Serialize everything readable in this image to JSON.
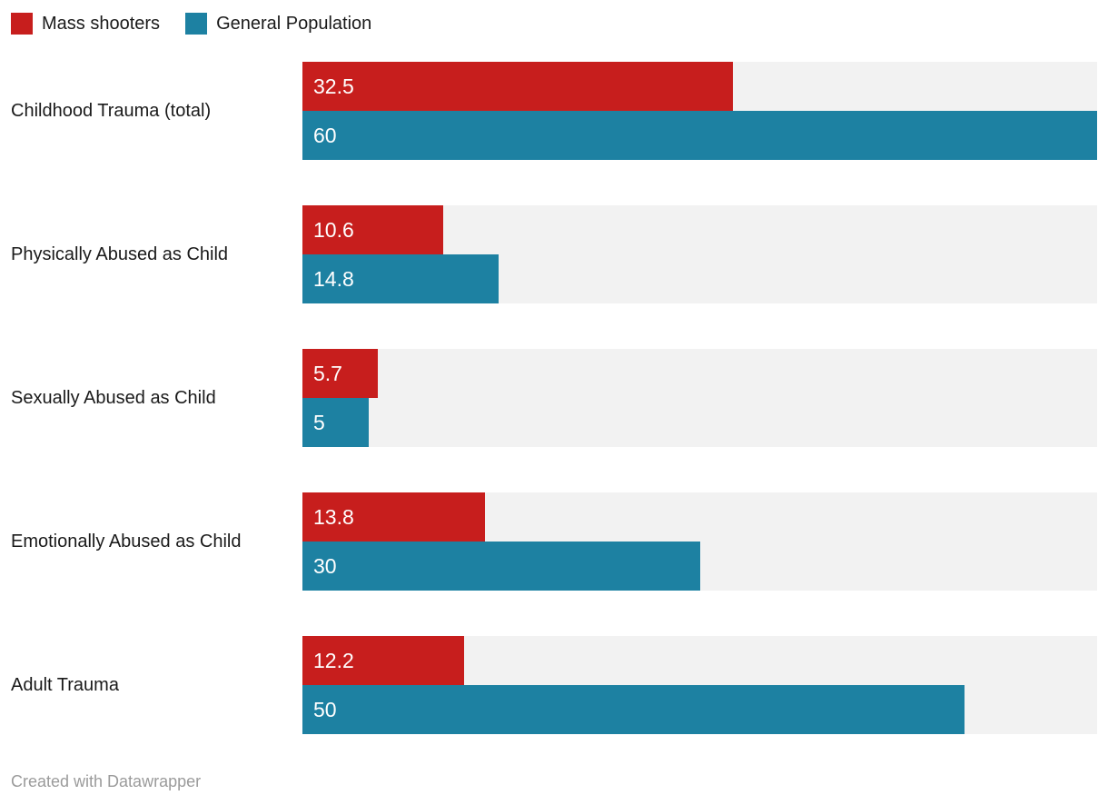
{
  "legend": {
    "items": [
      {
        "label": "Mass shooters",
        "color": "#c71e1d"
      },
      {
        "label": "General Population",
        "color": "#1d81a2"
      }
    ]
  },
  "chart_data": {
    "type": "bar",
    "orientation": "horizontal",
    "grouped": true,
    "title": "",
    "xlabel": "",
    "ylabel": "",
    "xlim": [
      0,
      60
    ],
    "grid": false,
    "legend_position": "top-left",
    "value_labels": "inside-left",
    "track_color": "#f2f2f2",
    "categories": [
      "Childhood Trauma (total)",
      "Physically Abused as Child",
      "Sexually Abused as Child",
      "Emotionally Abused as Child",
      "Adult Trauma"
    ],
    "series": [
      {
        "name": "Mass shooters",
        "color": "#c71e1d",
        "values": [
          32.5,
          10.6,
          5.7,
          13.8,
          12.2
        ],
        "value_label_texts": [
          "32.5",
          "10.6",
          "5.7",
          "13.8",
          "12.2"
        ]
      },
      {
        "name": "General Population",
        "color": "#1d81a2",
        "values": [
          60,
          14.8,
          5,
          30,
          50
        ],
        "value_label_texts": [
          "60",
          "14.8",
          "5",
          "30",
          "50"
        ]
      }
    ]
  },
  "footer": {
    "attribution": "Created with Datawrapper"
  },
  "colors": {
    "series_red": "#c71e1d",
    "series_teal": "#1d81a2",
    "bar_track": "#f2f2f2",
    "text_dark": "#1a1a1a",
    "text_muted": "#9b9b9b",
    "background": "#ffffff"
  }
}
